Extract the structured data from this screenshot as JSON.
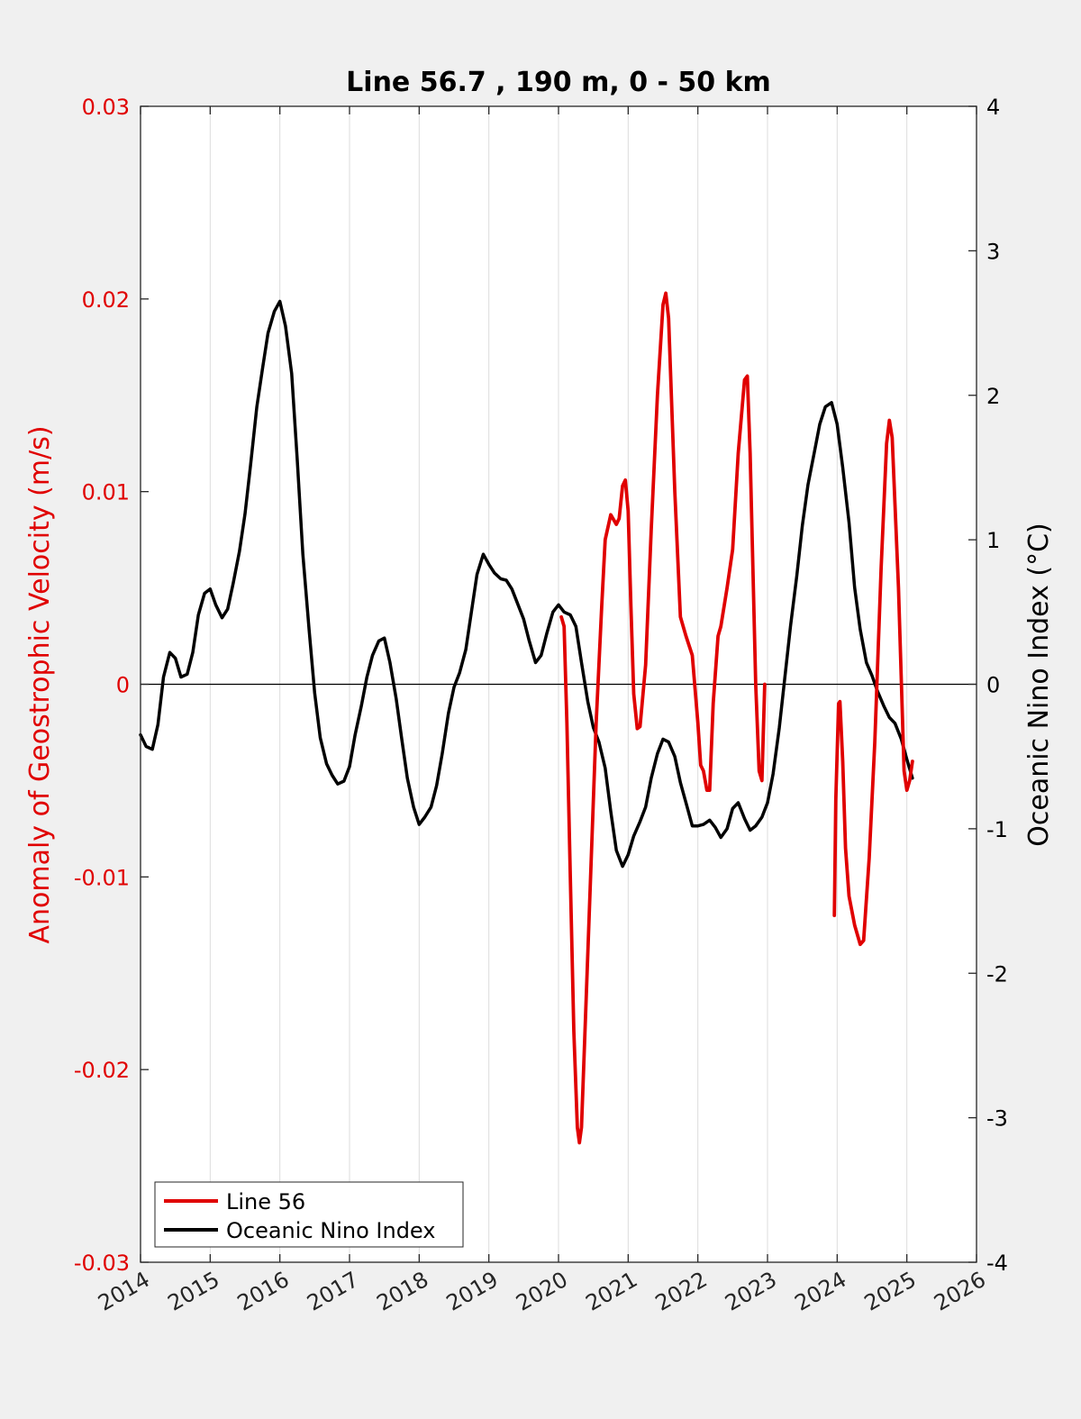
{
  "chart_data": {
    "type": "line",
    "title": "Line 56.7 , 190 m, 0 - 50 km",
    "xlim": [
      2014,
      2026
    ],
    "x_ticks": [
      "2014",
      "2015",
      "2016",
      "2017",
      "2018",
      "2019",
      "2020",
      "2021",
      "2022",
      "2023",
      "2024",
      "2025",
      "2026"
    ],
    "y_left": {
      "label": "Anomaly of Geostrophic Velocity (m/s)",
      "lim": [
        -0.03,
        0.03
      ],
      "ticks": [
        "0.03",
        "0.02",
        "0.01",
        "0",
        "-0.01",
        "-0.02",
        "-0.03"
      ],
      "color": "#e00000"
    },
    "y_right": {
      "label": "Oceanic Nino Index (°C)",
      "lim": [
        -4,
        4
      ],
      "ticks": [
        "4",
        "3",
        "2",
        "1",
        "0",
        "-1",
        "-2",
        "-3",
        "-4"
      ],
      "color": "#000000"
    },
    "grid": "x-only",
    "zero_line": true,
    "legend_position": "bottom-left",
    "series": [
      {
        "name": "Line 56",
        "axis": "left",
        "color": "#e00000",
        "segments": [
          [
            [
              2020.04,
              0.0035
            ],
            [
              2020.08,
              0.003
            ],
            [
              2020.12,
              -0.002
            ],
            [
              2020.17,
              -0.01
            ],
            [
              2020.22,
              -0.018
            ],
            [
              2020.27,
              -0.023
            ],
            [
              2020.3,
              -0.0238
            ],
            [
              2020.33,
              -0.023
            ],
            [
              2020.38,
              -0.018
            ],
            [
              2020.46,
              -0.01
            ],
            [
              2020.54,
              -0.002
            ],
            [
              2020.62,
              0.004
            ],
            [
              2020.67,
              0.0075
            ],
            [
              2020.75,
              0.0088
            ],
            [
              2020.83,
              0.0083
            ],
            [
              2020.87,
              0.0086
            ],
            [
              2020.92,
              0.0103
            ],
            [
              2020.96,
              0.0106
            ],
            [
              2021.0,
              0.009
            ],
            [
              2021.04,
              0.004
            ],
            [
              2021.08,
              -0.0005
            ],
            [
              2021.13,
              -0.0023
            ],
            [
              2021.17,
              -0.0022
            ],
            [
              2021.25,
              0.001
            ],
            [
              2021.33,
              0.008
            ],
            [
              2021.42,
              0.015
            ],
            [
              2021.5,
              0.0197
            ],
            [
              2021.54,
              0.0203
            ],
            [
              2021.58,
              0.019
            ],
            [
              2021.67,
              0.01
            ],
            [
              2021.75,
              0.0035
            ],
            [
              2021.83,
              0.0025
            ],
            [
              2021.92,
              0.0015
            ],
            [
              2022.0,
              -0.002
            ],
            [
              2022.04,
              -0.0042
            ],
            [
              2022.08,
              -0.0045
            ],
            [
              2022.13,
              -0.0055
            ],
            [
              2022.17,
              -0.0055
            ],
            [
              2022.22,
              -0.001
            ],
            [
              2022.29,
              0.0025
            ],
            [
              2022.33,
              0.003
            ],
            [
              2022.42,
              0.005
            ],
            [
              2022.5,
              0.007
            ],
            [
              2022.58,
              0.012
            ],
            [
              2022.67,
              0.0158
            ],
            [
              2022.71,
              0.016
            ],
            [
              2022.75,
              0.012
            ],
            [
              2022.83,
              0.0
            ],
            [
              2022.88,
              -0.0045
            ],
            [
              2022.92,
              -0.005
            ],
            [
              2022.96,
              0.0
            ]
          ],
          [
            [
              2023.96,
              -0.012
            ],
            [
              2023.98,
              -0.006
            ],
            [
              2024.02,
              -0.001
            ],
            [
              2024.04,
              -0.0009
            ],
            [
              2024.08,
              -0.004
            ],
            [
              2024.12,
              -0.0085
            ],
            [
              2024.17,
              -0.011
            ],
            [
              2024.25,
              -0.0125
            ],
            [
              2024.33,
              -0.0135
            ],
            [
              2024.38,
              -0.0133
            ],
            [
              2024.46,
              -0.009
            ],
            [
              2024.54,
              -0.003
            ],
            [
              2024.63,
              0.006
            ],
            [
              2024.71,
              0.0125
            ],
            [
              2024.75,
              0.0137
            ],
            [
              2024.79,
              0.0128
            ],
            [
              2024.88,
              0.005
            ],
            [
              2024.96,
              -0.0045
            ],
            [
              2025.0,
              -0.0055
            ],
            [
              2025.04,
              -0.005
            ],
            [
              2025.08,
              -0.004
            ]
          ]
        ]
      },
      {
        "name": "Oceanic Nino Index",
        "axis": "right",
        "color": "#000000",
        "points": [
          [
            2014.0,
            -0.35
          ],
          [
            2014.08,
            -0.43
          ],
          [
            2014.17,
            -0.45
          ],
          [
            2014.25,
            -0.28
          ],
          [
            2014.33,
            0.05
          ],
          [
            2014.42,
            0.22
          ],
          [
            2014.5,
            0.18
          ],
          [
            2014.58,
            0.05
          ],
          [
            2014.67,
            0.07
          ],
          [
            2014.75,
            0.22
          ],
          [
            2014.83,
            0.48
          ],
          [
            2014.92,
            0.63
          ],
          [
            2015.0,
            0.66
          ],
          [
            2015.08,
            0.55
          ],
          [
            2015.17,
            0.46
          ],
          [
            2015.25,
            0.52
          ],
          [
            2015.33,
            0.7
          ],
          [
            2015.42,
            0.92
          ],
          [
            2015.5,
            1.18
          ],
          [
            2015.58,
            1.52
          ],
          [
            2015.67,
            1.92
          ],
          [
            2015.75,
            2.18
          ],
          [
            2015.83,
            2.43
          ],
          [
            2015.92,
            2.58
          ],
          [
            2016.0,
            2.65
          ],
          [
            2016.08,
            2.48
          ],
          [
            2016.17,
            2.15
          ],
          [
            2016.25,
            1.55
          ],
          [
            2016.33,
            0.9
          ],
          [
            2016.42,
            0.38
          ],
          [
            2016.5,
            -0.06
          ],
          [
            2016.58,
            -0.37
          ],
          [
            2016.67,
            -0.55
          ],
          [
            2016.75,
            -0.63
          ],
          [
            2016.83,
            -0.69
          ],
          [
            2016.92,
            -0.67
          ],
          [
            2017.0,
            -0.57
          ],
          [
            2017.08,
            -0.35
          ],
          [
            2017.17,
            -0.15
          ],
          [
            2017.25,
            0.05
          ],
          [
            2017.33,
            0.2
          ],
          [
            2017.42,
            0.3
          ],
          [
            2017.5,
            0.32
          ],
          [
            2017.58,
            0.15
          ],
          [
            2017.67,
            -0.1
          ],
          [
            2017.75,
            -0.38
          ],
          [
            2017.83,
            -0.65
          ],
          [
            2017.92,
            -0.85
          ],
          [
            2018.0,
            -0.97
          ],
          [
            2018.08,
            -0.92
          ],
          [
            2018.17,
            -0.85
          ],
          [
            2018.25,
            -0.7
          ],
          [
            2018.33,
            -0.48
          ],
          [
            2018.42,
            -0.2
          ],
          [
            2018.5,
            -0.02
          ],
          [
            2018.58,
            0.08
          ],
          [
            2018.67,
            0.24
          ],
          [
            2018.75,
            0.5
          ],
          [
            2018.83,
            0.76
          ],
          [
            2018.92,
            0.9
          ],
          [
            2019.0,
            0.83
          ],
          [
            2019.08,
            0.77
          ],
          [
            2019.17,
            0.73
          ],
          [
            2019.25,
            0.72
          ],
          [
            2019.33,
            0.66
          ],
          [
            2019.42,
            0.55
          ],
          [
            2019.5,
            0.45
          ],
          [
            2019.58,
            0.3
          ],
          [
            2019.67,
            0.15
          ],
          [
            2019.75,
            0.2
          ],
          [
            2019.83,
            0.35
          ],
          [
            2019.92,
            0.5
          ],
          [
            2020.0,
            0.55
          ],
          [
            2020.08,
            0.5
          ],
          [
            2020.17,
            0.48
          ],
          [
            2020.25,
            0.4
          ],
          [
            2020.33,
            0.15
          ],
          [
            2020.42,
            -0.12
          ],
          [
            2020.5,
            -0.3
          ],
          [
            2020.58,
            -0.4
          ],
          [
            2020.67,
            -0.58
          ],
          [
            2020.75,
            -0.88
          ],
          [
            2020.83,
            -1.15
          ],
          [
            2020.92,
            -1.26
          ],
          [
            2021.0,
            -1.18
          ],
          [
            2021.08,
            -1.05
          ],
          [
            2021.17,
            -0.95
          ],
          [
            2021.25,
            -0.85
          ],
          [
            2021.33,
            -0.65
          ],
          [
            2021.42,
            -0.48
          ],
          [
            2021.5,
            -0.38
          ],
          [
            2021.58,
            -0.4
          ],
          [
            2021.67,
            -0.5
          ],
          [
            2021.75,
            -0.68
          ],
          [
            2021.83,
            -0.82
          ],
          [
            2021.92,
            -0.98
          ],
          [
            2022.0,
            -0.98
          ],
          [
            2022.08,
            -0.97
          ],
          [
            2022.17,
            -0.94
          ],
          [
            2022.25,
            -0.99
          ],
          [
            2022.33,
            -1.06
          ],
          [
            2022.42,
            -1.0
          ],
          [
            2022.5,
            -0.86
          ],
          [
            2022.58,
            -0.82
          ],
          [
            2022.67,
            -0.93
          ],
          [
            2022.75,
            -1.01
          ],
          [
            2022.83,
            -0.98
          ],
          [
            2022.92,
            -0.92
          ],
          [
            2023.0,
            -0.82
          ],
          [
            2023.08,
            -0.62
          ],
          [
            2023.17,
            -0.3
          ],
          [
            2023.25,
            0.05
          ],
          [
            2023.33,
            0.4
          ],
          [
            2023.42,
            0.75
          ],
          [
            2023.5,
            1.1
          ],
          [
            2023.58,
            1.38
          ],
          [
            2023.67,
            1.6
          ],
          [
            2023.75,
            1.8
          ],
          [
            2023.83,
            1.92
          ],
          [
            2023.92,
            1.95
          ],
          [
            2024.0,
            1.8
          ],
          [
            2024.08,
            1.5
          ],
          [
            2024.17,
            1.12
          ],
          [
            2024.25,
            0.67
          ],
          [
            2024.33,
            0.38
          ],
          [
            2024.42,
            0.15
          ],
          [
            2024.5,
            0.06
          ],
          [
            2024.58,
            -0.05
          ],
          [
            2024.67,
            -0.15
          ],
          [
            2024.75,
            -0.23
          ],
          [
            2024.83,
            -0.27
          ],
          [
            2024.92,
            -0.38
          ],
          [
            2025.0,
            -0.52
          ],
          [
            2025.08,
            -0.65
          ]
        ]
      }
    ]
  }
}
